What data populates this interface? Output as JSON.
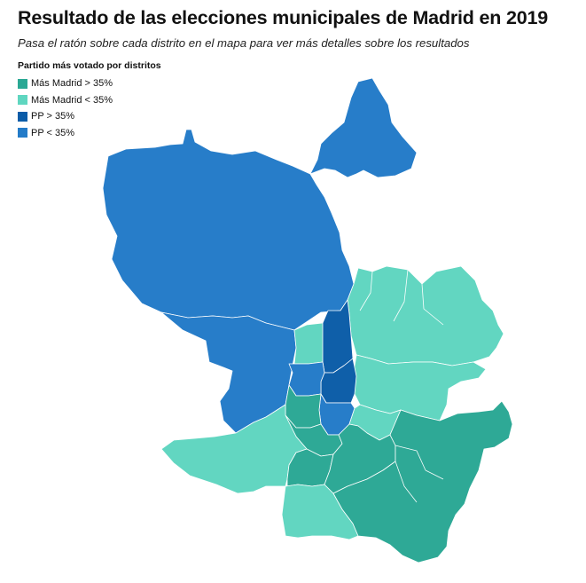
{
  "title": "Resultado de las elecciones municipales de Madrid en 2019",
  "subtitle": "Pasa el ratón sobre cada distrito en el mapa para ver más detalles sobre los resultados",
  "legend": {
    "title": "Partido más votado por distritos",
    "items": [
      {
        "label": "Más Madrid > 35%",
        "color": "#2aa894"
      },
      {
        "label": "Más Madrid < 35%",
        "color": "#5fd6c0"
      },
      {
        "label": "PP > 35%",
        "color": "#0b5ca8"
      },
      {
        "label": "PP < 35%",
        "color": "#237bc8"
      }
    ]
  }
}
